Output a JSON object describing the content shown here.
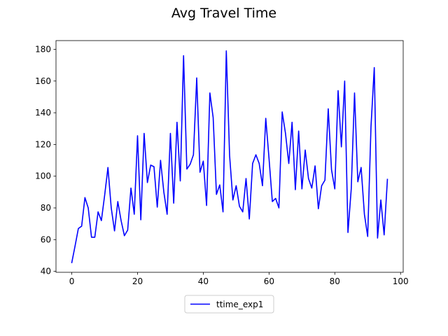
{
  "chart_data": {
    "type": "line",
    "title": "Avg Travel Time",
    "xlabel": "",
    "ylabel": "",
    "xlim": [
      -4.8,
      100.8
    ],
    "ylim": [
      39.4,
      185.5
    ],
    "xticks": [
      0,
      20,
      40,
      60,
      80,
      100
    ],
    "yticks": [
      40,
      60,
      80,
      100,
      120,
      140,
      160,
      180
    ],
    "grid": false,
    "legend_position": "bottom-center",
    "series": [
      {
        "name": "ttime_exp1",
        "color": "#0000ff",
        "x": [
          0,
          1,
          2,
          3,
          4,
          5,
          6,
          7,
          8,
          9,
          10,
          11,
          12,
          13,
          14,
          15,
          16,
          17,
          18,
          19,
          20,
          21,
          22,
          23,
          24,
          25,
          26,
          27,
          28,
          29,
          30,
          31,
          32,
          33,
          34,
          35,
          36,
          37,
          38,
          39,
          40,
          41,
          42,
          43,
          44,
          45,
          46,
          47,
          48,
          49,
          50,
          51,
          52,
          53,
          54,
          55,
          56,
          57,
          58,
          59,
          60,
          61,
          62,
          63,
          64,
          65,
          66,
          67,
          68,
          69,
          70,
          71,
          72,
          73,
          74,
          75,
          76,
          77,
          78,
          79,
          80,
          81,
          82,
          83,
          84,
          85,
          86,
          87,
          88,
          89,
          90,
          91,
          92,
          93,
          94,
          95,
          96
        ],
        "values": [
          45.5,
          56,
          67,
          68.5,
          86.5,
          80,
          61.5,
          61.5,
          77.5,
          72,
          88,
          105.5,
          80,
          65.5,
          84,
          72,
          62.5,
          66,
          92.5,
          76,
          125.5,
          72.5,
          127,
          96,
          107,
          106,
          80.5,
          110,
          90,
          76,
          127,
          83,
          134,
          97,
          176,
          104.5,
          107.5,
          113.5,
          162,
          102.5,
          109.5,
          81.5,
          152.5,
          137,
          88.5,
          94.5,
          77.5,
          179,
          113,
          85,
          94,
          81,
          77.5,
          98.5,
          73,
          108,
          113.5,
          108,
          94,
          136.5,
          111,
          84,
          86,
          80,
          140.5,
          127,
          108,
          134,
          91.5,
          128.5,
          92,
          116.5,
          98.5,
          92.5,
          106.5,
          79.5,
          94,
          97.5,
          142.5,
          104,
          92,
          154,
          118.5,
          160,
          64.5,
          92,
          152.5,
          96.5,
          105.5,
          76,
          62,
          131,
          168.5,
          61,
          85,
          63,
          98
        ]
      }
    ]
  }
}
